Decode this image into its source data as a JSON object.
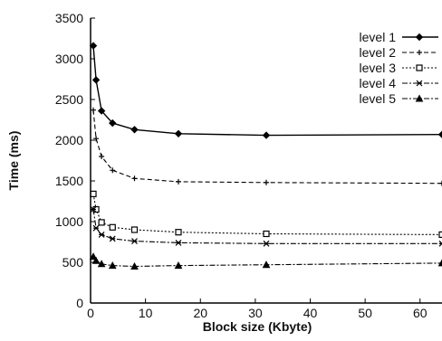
{
  "chart_data": {
    "type": "line",
    "title": "",
    "xlabel": "Block size (Kbyte)",
    "ylabel": "Time (ms)",
    "xlim": [
      0,
      64
    ],
    "ylim": [
      0,
      3500
    ],
    "xticks": [
      "0",
      "10",
      "20",
      "30",
      "40",
      "50",
      "60"
    ],
    "yticks": [
      "0",
      "500",
      "1000",
      "1500",
      "2000",
      "2500",
      "3000",
      "3500"
    ],
    "grid": false,
    "legend_position": "top-right",
    "series": [
      {
        "name": "level 1",
        "marker": "diamond",
        "dash": "solid",
        "x": [
          0.5,
          1,
          2,
          4,
          8,
          16,
          32,
          64
        ],
        "y": [
          3160,
          2740,
          2360,
          2210,
          2130,
          2080,
          2060,
          2070
        ]
      },
      {
        "name": "level 2",
        "marker": "plus",
        "dash": "dashed",
        "x": [
          0.5,
          1,
          2,
          4,
          8,
          16,
          32,
          64
        ],
        "y": [
          2370,
          2020,
          1800,
          1630,
          1530,
          1490,
          1480,
          1470
        ]
      },
      {
        "name": "level 3",
        "marker": "square",
        "dash": "dotted",
        "x": [
          0.5,
          1,
          2,
          4,
          8,
          16,
          32,
          64
        ],
        "y": [
          1340,
          1150,
          990,
          930,
          900,
          870,
          850,
          840
        ]
      },
      {
        "name": "level 4",
        "marker": "cross",
        "dash": "dashdot",
        "x": [
          0.5,
          1,
          2,
          4,
          8,
          16,
          32,
          64
        ],
        "y": [
          1150,
          920,
          840,
          790,
          760,
          740,
          730,
          730
        ]
      },
      {
        "name": "level 5",
        "marker": "triangle",
        "dash": "dashdot",
        "x": [
          0.5,
          1,
          2,
          4,
          8,
          16,
          32,
          64
        ],
        "y": [
          570,
          520,
          480,
          460,
          450,
          460,
          470,
          490
        ]
      }
    ]
  }
}
